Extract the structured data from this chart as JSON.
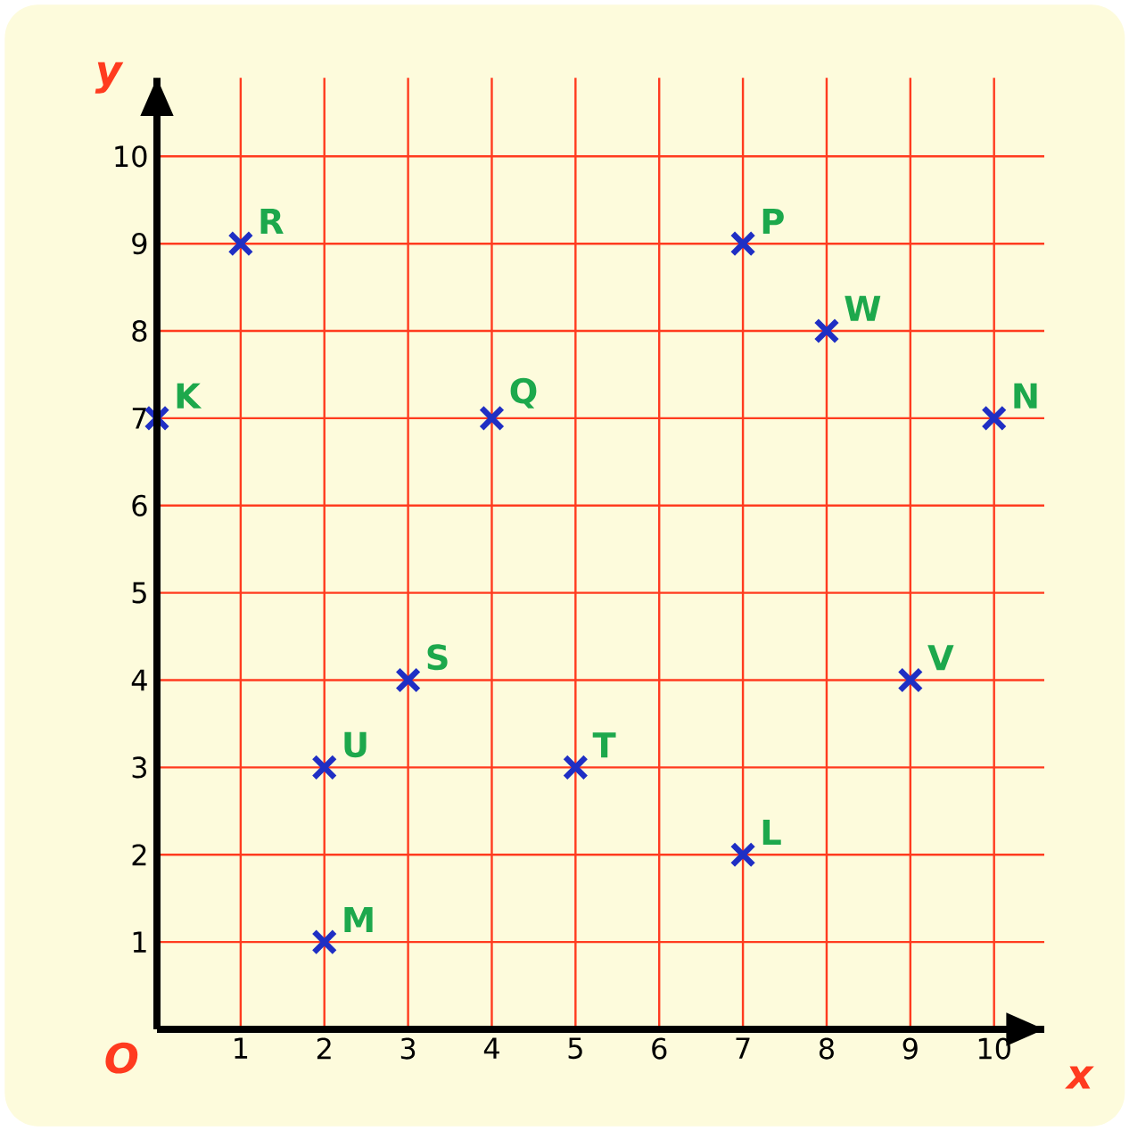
{
  "chart_data": {
    "type": "scatter",
    "xlabel": "x",
    "ylabel": "y",
    "xlim": [
      0,
      10.6
    ],
    "ylim": [
      0,
      10.9
    ],
    "xticks": [
      1,
      2,
      3,
      4,
      5,
      6,
      7,
      8,
      9,
      10
    ],
    "yticks": [
      1,
      2,
      3,
      4,
      5,
      6,
      7,
      8,
      9,
      10
    ],
    "grid": true,
    "marker": "cross",
    "series": [
      {
        "color": "#1f2fc4",
        "x": [
          1,
          0,
          7,
          8,
          4,
          10,
          3,
          9,
          2,
          5,
          7,
          2
        ],
        "values": [
          9,
          7,
          9,
          8,
          7,
          7,
          4,
          4,
          3,
          3,
          2,
          1
        ]
      }
    ],
    "annotations": [
      {
        "text": "R",
        "x": 1,
        "y": 9
      },
      {
        "text": "K",
        "x": 0,
        "y": 7
      },
      {
        "text": "P",
        "x": 7,
        "y": 9
      },
      {
        "text": "W",
        "x": 8,
        "y": 8
      },
      {
        "text": "Q",
        "x": 4,
        "y": 7
      },
      {
        "text": "N",
        "x": 10,
        "y": 7
      },
      {
        "text": "S",
        "x": 3,
        "y": 4
      },
      {
        "text": "V",
        "x": 9,
        "y": 4
      },
      {
        "text": "U",
        "x": 2,
        "y": 3
      },
      {
        "text": "T",
        "x": 5,
        "y": 3
      },
      {
        "text": "L",
        "x": 7,
        "y": 2
      },
      {
        "text": "M",
        "x": 2,
        "y": 1
      },
      "O"
    ]
  }
}
